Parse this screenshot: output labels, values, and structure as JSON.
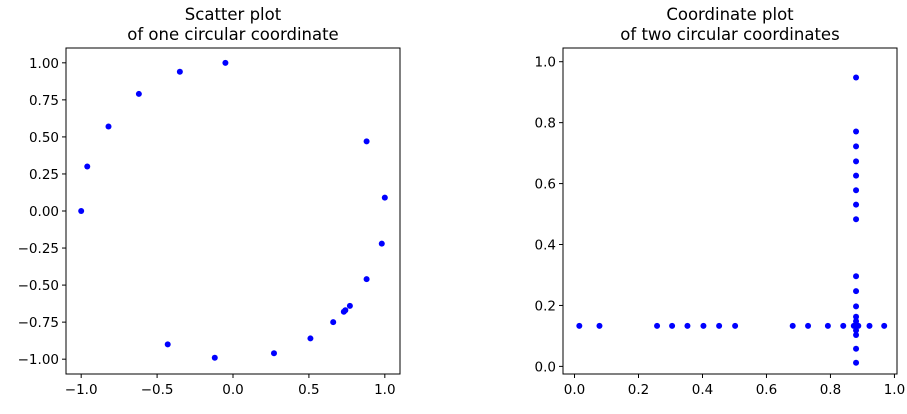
{
  "chart_data": [
    {
      "type": "scatter",
      "title_line1": "Scatter plot",
      "title_line2": "of one circular coordinate",
      "xlim": [
        -1.1,
        1.1
      ],
      "ylim": [
        -1.1,
        1.1
      ],
      "xticks": [
        -1.0,
        -0.5,
        0.0,
        0.5,
        1.0
      ],
      "xtick_labels": [
        "−1.0",
        "−0.5",
        "0.0",
        "0.5",
        "1.0"
      ],
      "yticks": [
        1.0,
        0.75,
        0.5,
        0.25,
        0.0,
        -0.25,
        -0.5,
        -0.75,
        -1.0
      ],
      "ytick_labels": [
        "1.00",
        "0.75",
        "0.50",
        "0.25",
        "0.00",
        "−0.25",
        "−0.50",
        "−0.75",
        "−1.00"
      ],
      "color": "#0000ff",
      "points": [
        [
          -0.05,
          1.0
        ],
        [
          -0.35,
          0.94
        ],
        [
          -0.62,
          0.79
        ],
        [
          -0.82,
          0.57
        ],
        [
          -0.96,
          0.3
        ],
        [
          -1.0,
          0.0
        ],
        [
          0.88,
          0.47
        ],
        [
          1.0,
          0.09
        ],
        [
          0.98,
          -0.22
        ],
        [
          0.88,
          -0.46
        ],
        [
          0.77,
          -0.64
        ],
        [
          0.74,
          -0.67
        ],
        [
          0.73,
          -0.68
        ],
        [
          0.66,
          -0.75
        ],
        [
          0.51,
          -0.86
        ],
        [
          0.27,
          -0.96
        ],
        [
          -0.12,
          -0.99
        ],
        [
          -0.43,
          -0.9
        ]
      ]
    },
    {
      "type": "scatter",
      "title_line1": "Coordinate plot",
      "title_line2": "of two circular coordinates",
      "xlim": [
        -0.036,
        1.008
      ],
      "ylim": [
        -0.025,
        1.045
      ],
      "xticks": [
        0.0,
        0.2,
        0.4,
        0.6,
        0.8,
        1.0
      ],
      "xtick_labels": [
        "0.0",
        "0.2",
        "0.4",
        "0.6",
        "0.8",
        "1.0"
      ],
      "yticks": [
        0.0,
        0.2,
        0.4,
        0.6,
        0.8,
        1.0
      ],
      "ytick_labels": [
        "0.0",
        "0.2",
        "0.4",
        "0.6",
        "0.8",
        "1.0"
      ],
      "color": "#0000ff",
      "points": [
        [
          0.015,
          0.133
        ],
        [
          0.078,
          0.133
        ],
        [
          0.258,
          0.133
        ],
        [
          0.305,
          0.133
        ],
        [
          0.353,
          0.133
        ],
        [
          0.403,
          0.133
        ],
        [
          0.452,
          0.133
        ],
        [
          0.502,
          0.133
        ],
        [
          0.682,
          0.133
        ],
        [
          0.73,
          0.133
        ],
        [
          0.792,
          0.133
        ],
        [
          0.84,
          0.133
        ],
        [
          0.873,
          0.133
        ],
        [
          0.887,
          0.133
        ],
        [
          0.922,
          0.133
        ],
        [
          0.968,
          0.133
        ],
        [
          0.88,
          0.948
        ],
        [
          0.88,
          0.771
        ],
        [
          0.88,
          0.722
        ],
        [
          0.88,
          0.673
        ],
        [
          0.88,
          0.626
        ],
        [
          0.88,
          0.578
        ],
        [
          0.88,
          0.531
        ],
        [
          0.88,
          0.483
        ],
        [
          0.88,
          0.296
        ],
        [
          0.88,
          0.247
        ],
        [
          0.88,
          0.197
        ],
        [
          0.88,
          0.163
        ],
        [
          0.88,
          0.148
        ],
        [
          0.88,
          0.118
        ],
        [
          0.88,
          0.103
        ],
        [
          0.88,
          0.058
        ],
        [
          0.88,
          0.012
        ]
      ]
    }
  ]
}
